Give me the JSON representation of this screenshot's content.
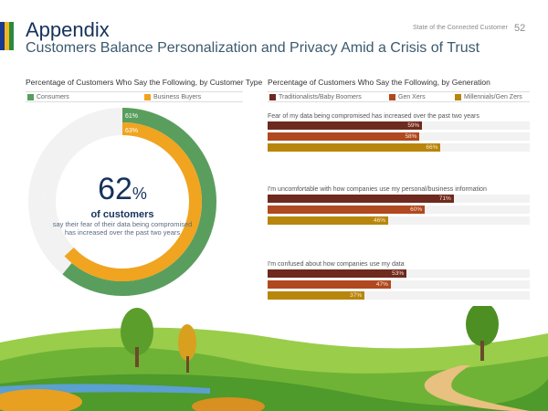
{
  "header": {
    "title": "Appendix",
    "subtitle": "Customers Balance Personalization and Privacy Amid a Crisis of Trust",
    "doc_title": "State of the Connected Customer",
    "page_number": "52",
    "stripe_colors": [
      "#1a3a8f",
      "#f2b620",
      "#2a8a3e"
    ]
  },
  "chart_data": [
    {
      "type": "donut",
      "title": "Percentage of Customers Who Say the Following, by Customer Type",
      "legend": [
        "Consumers",
        "Business Buyers"
      ],
      "series": [
        {
          "name": "Consumers",
          "value": 61,
          "label": "61%",
          "color": "#5a9e5e"
        },
        {
          "name": "Business Buyers",
          "value": 63,
          "label": "63%",
          "color": "#f0a420"
        }
      ],
      "center": {
        "value": "62",
        "unit": "%",
        "label": "of customers",
        "description": "say their fear of their data being compromised has increased over the past two years"
      }
    },
    {
      "type": "bar",
      "orientation": "horizontal",
      "title": "Percentage of Customers Who Say the Following, by Generation",
      "xlim": [
        0,
        100
      ],
      "series_names": [
        "Traditionalists/Baby Boomers",
        "Gen Xers",
        "Millennials/Gen Zers"
      ],
      "colors": [
        "#6e2a1e",
        "#b0491f",
        "#b8860b"
      ],
      "categories": [
        "Fear of my data being compromised has increased over the past two years",
        "I'm uncomfortable with how companies use my personal/business information",
        "I'm confused about how companies use my data"
      ],
      "values": [
        [
          59,
          58,
          66
        ],
        [
          71,
          60,
          46
        ],
        [
          53,
          47,
          37
        ]
      ]
    }
  ]
}
